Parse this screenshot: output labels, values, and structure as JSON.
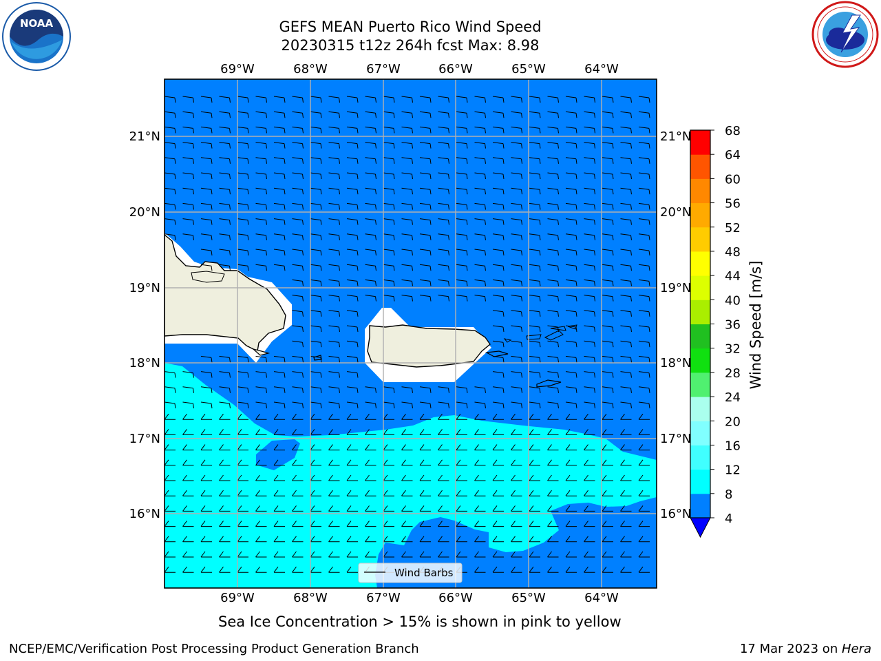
{
  "header": {
    "title_line1": "GEFS MEAN Puerto Rico Wind Speed",
    "title_line2": "20230315 t12z 264h fcst   Max: 8.98"
  },
  "logos": {
    "left": {
      "icon": "noaa-logo",
      "text": "NOAA"
    },
    "right": {
      "icon": "nws-logo",
      "text": "NATIONAL WEATHER SERVICE"
    }
  },
  "map": {
    "lon_labels": [
      "69°W",
      "68°W",
      "67°W",
      "66°W",
      "65°W",
      "64°W"
    ],
    "lat_labels": [
      "21°N",
      "20°N",
      "19°N",
      "18°N",
      "17°N",
      "16°N"
    ],
    "legend_label": "Wind Barbs",
    "colors": {
      "ocean_4_8": "#0080ff",
      "ocean_8_12": "#00ffff",
      "land": "#efefde",
      "masked": "#ffffff"
    }
  },
  "colorbar": {
    "label": "Wind Speed [m/s]",
    "ticks": [
      "4",
      "8",
      "12",
      "16",
      "20",
      "24",
      "28",
      "32",
      "36",
      "40",
      "44",
      "48",
      "52",
      "56",
      "60",
      "64",
      "68"
    ],
    "colors": [
      "#0080ff",
      "#00ffff",
      "#40ffff",
      "#80ffff",
      "#aaffee",
      "#50f070",
      "#10e010",
      "#20c020",
      "#aaee00",
      "#ccff00",
      "#eeff00",
      "#ffff00",
      "#ffcc00",
      "#ffaa00",
      "#ff8800",
      "#ff5500",
      "#ff2200",
      "#ff0000"
    ],
    "extend_color": "#0000ff"
  },
  "notes": {
    "sea_ice": "Sea Ice Concentration > 15% is shown in pink to yellow"
  },
  "footer": {
    "left": "NCEP/EMC/Verification Post Processing Product Generation Branch",
    "right_date": "17 Mar 2023 on ",
    "right_machine": "Hera"
  }
}
